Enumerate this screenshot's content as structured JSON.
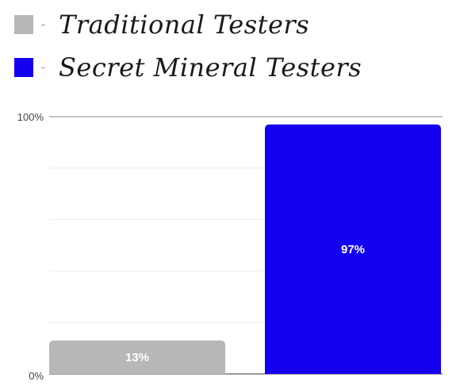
{
  "chart_data": {
    "type": "bar",
    "categories": [
      "Traditional Testers",
      "Secret Mineral Testers"
    ],
    "values": [
      13,
      97
    ],
    "colors": [
      "#b7b7b7",
      "#1400f0"
    ],
    "data_labels": [
      "13%",
      "97%"
    ],
    "ylim": [
      0,
      100
    ],
    "y_ticks": [
      "0%",
      "100%"
    ],
    "grid": true,
    "legend_position": "top",
    "title": "",
    "xlabel": "",
    "ylabel": ""
  },
  "legend": {
    "items": [
      {
        "label": "Traditional Testers",
        "color": "#b7b7b7"
      },
      {
        "label": "Secret Mineral Testers",
        "color": "#1400f0"
      }
    ]
  }
}
